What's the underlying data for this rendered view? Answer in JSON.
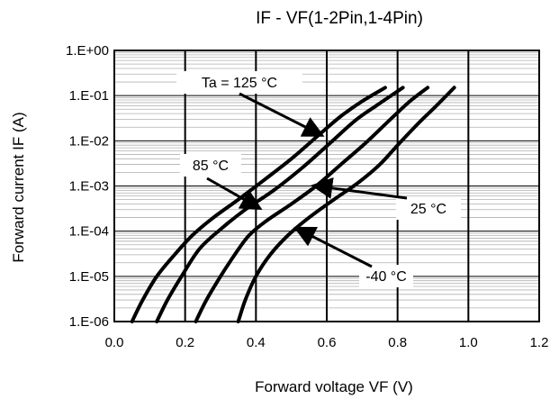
{
  "chart_data": {
    "type": "line",
    "title": "IF - VF(1-2Pin,1-4Pin)",
    "xlabel": "Forward voltage VF (V)",
    "ylabel": "Forward current IF (A)",
    "xlim": [
      0,
      1.2
    ],
    "ylim": [
      1e-06,
      1
    ],
    "yscale": "log",
    "grid": true,
    "x_ticks": [
      "0.0",
      "0.2",
      "0.4",
      "0.6",
      "0.8",
      "1.0",
      "1.2"
    ],
    "y_ticks": [
      "1.E-06",
      "1.E-05",
      "1.E-04",
      "1.E-03",
      "1.E-02",
      "1.E-01",
      "1.E+00"
    ],
    "series": [
      {
        "name": "Ta = 125 °C",
        "x": [
          0.05,
          0.08,
          0.12,
          0.17,
          0.22,
          0.28,
          0.35,
          0.42,
          0.5,
          0.58,
          0.64,
          0.7,
          0.765
        ],
        "y": [
          1e-06,
          3e-06,
          1e-05,
          3e-05,
          8e-05,
          0.0002,
          0.0005,
          0.0013,
          0.004,
          0.014,
          0.035,
          0.075,
          0.15
        ]
      },
      {
        "name": "85 °C",
        "x": [
          0.12,
          0.15,
          0.19,
          0.24,
          0.3,
          0.37,
          0.45,
          0.53,
          0.61,
          0.68,
          0.74,
          0.815
        ],
        "y": [
          1e-06,
          3e-06,
          1e-05,
          4e-05,
          0.00011,
          0.0003,
          0.0008,
          0.0025,
          0.009,
          0.028,
          0.06,
          0.15
        ]
      },
      {
        "name": "25 °C",
        "x": [
          0.23,
          0.26,
          0.3,
          0.34,
          0.38,
          0.43,
          0.5,
          0.57,
          0.64,
          0.71,
          0.78,
          0.835,
          0.885
        ],
        "y": [
          1e-06,
          3e-06,
          1e-05,
          3e-05,
          8e-05,
          0.00017,
          0.0004,
          0.001,
          0.003,
          0.009,
          0.03,
          0.075,
          0.15
        ]
      },
      {
        "name": "-40 °C",
        "x": [
          0.35,
          0.37,
          0.4,
          0.44,
          0.49,
          0.55,
          0.62,
          0.69,
          0.75,
          0.8,
          0.86,
          0.91,
          0.96
        ],
        "y": [
          1e-06,
          3e-06,
          1e-05,
          3e-05,
          8e-05,
          0.0002,
          0.0005,
          0.0012,
          0.003,
          0.008,
          0.025,
          0.06,
          0.15
        ]
      }
    ],
    "annotations": [
      {
        "text": "Ta = 125 °C",
        "series": 0
      },
      {
        "text": "85 °C",
        "series": 1
      },
      {
        "text": "25 °C",
        "series": 2
      },
      {
        "text": "-40 °C",
        "series": 3
      }
    ]
  }
}
